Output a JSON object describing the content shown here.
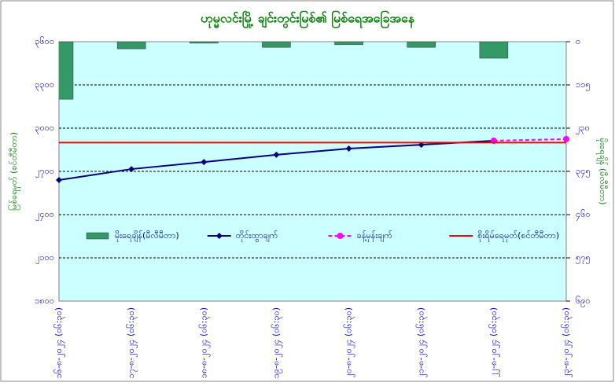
{
  "chart_data": {
    "type": "combo",
    "title": "ဟုမ္မလင်းမြို့ ချင်းတွင်းမြစ်၏ မြစ်ရေအခြေအနေ",
    "y_label": "မြစ်ရေမှတ် (စင်တီမီတာ)",
    "y2_label": "မိုးရေချိန် (မီလီမီတာ)",
    "categories": [
      "၁၆-၈-၂၀၂၄ (၀၆:၃၀)",
      "၁၇-၈-၂၀၂၄ (၀၆:၃၀)",
      "၁၈-၈-၂၀၂၄ (၀၆:၃၀)",
      "၁၉-၈-၂၀၂၄ (၀၆:၃၀)",
      "၂၀-၈-၂၀၂၄ (၀၆:၃၀)",
      "၂၁-၈-၂၀၂၄ (၀၆:၃၀)",
      "၂၂-၈-၂၀၂၄ (၀၆:၃၀)",
      "၂၃-၈-၂၀၂၄ (၀၆:၃၀)"
    ],
    "series": [
      {
        "name": "မိုးရေချိန်(မီလီမီတာ)",
        "kind": "bar",
        "axis": "y2",
        "color": "#339966",
        "values": [
          153,
          19,
          4,
          15,
          8,
          15,
          44,
          null
        ]
      },
      {
        "name": "တိုင်းထွာချက်",
        "kind": "line",
        "color": "#000080",
        "marker": "diamond",
        "values": [
          2640,
          2716,
          2765,
          2815,
          2858,
          2885,
          2913,
          null
        ]
      },
      {
        "name": "ခန့်မှန်းချက်",
        "kind": "line",
        "dashed": true,
        "color": "#ff00ff",
        "marker": "circle",
        "values": [
          null,
          null,
          null,
          null,
          null,
          null,
          2913,
          2924
        ]
      },
      {
        "name": "စိုးရိမ်ရေမှတ်(စင်တီမီတာ)",
        "kind": "line",
        "color": "#ff0000",
        "values": [
          2900,
          2900,
          2900,
          2900,
          2900,
          2900,
          2900,
          2900
        ]
      }
    ],
    "ylim": [
      1800,
      3600
    ],
    "yticks": [
      {
        "value": 1800,
        "label": "၁၈၀၀"
      },
      {
        "value": 2100,
        "label": "၂၁၀၀"
      },
      {
        "value": 2400,
        "label": "၂၄၀၀"
      },
      {
        "value": 2700,
        "label": "၂၇၀၀"
      },
      {
        "value": 3000,
        "label": "၃၀၀၀"
      },
      {
        "value": 3300,
        "label": "၃၃၀၀"
      },
      {
        "value": 3600,
        "label": "၃၆၀၀"
      }
    ],
    "y2lim": [
      690,
      0
    ],
    "y2ticks": [
      {
        "value": 0,
        "label": "၀"
      },
      {
        "value": 115,
        "label": "၁၁၅"
      },
      {
        "value": 230,
        "label": "၂၃၀"
      },
      {
        "value": 345,
        "label": "၃၄၅"
      },
      {
        "value": 460,
        "label": "၄၆၀"
      },
      {
        "value": 575,
        "label": "၅၇၅"
      },
      {
        "value": 690,
        "label": "၆၉၀"
      }
    ],
    "grid": true,
    "legend": "center"
  }
}
